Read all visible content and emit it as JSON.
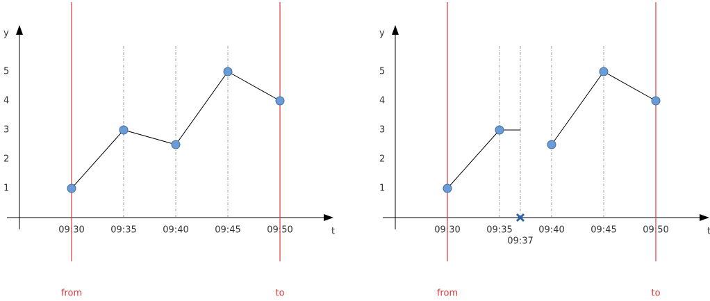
{
  "chart_data": [
    {
      "type": "line",
      "x_label": "t",
      "y_label": "y",
      "categories": [
        "09:30",
        "09:35",
        "09:40",
        "09:45",
        "09:50"
      ],
      "values": [
        1,
        3,
        2.5,
        5,
        4
      ],
      "color": "#6a9bd8",
      "line_color": "#000000",
      "ylim": [
        0,
        6.5
      ],
      "yticks": [
        1,
        2,
        3,
        4,
        5
      ],
      "range_labels": [
        "from",
        "to"
      ],
      "range_color": "#d9383a"
    },
    {
      "type": "line",
      "x_label": "t",
      "y_label": "y",
      "categories": [
        "09:30",
        "09:35",
        "09:37",
        "09:40",
        "09:45",
        "09:50"
      ],
      "values": [
        1,
        3,
        3,
        2.5,
        5,
        4
      ],
      "cross_at": 2,
      "color": "#6a9bd8",
      "line_color": "#000000",
      "ylim": [
        0,
        6.5
      ],
      "yticks": [
        1,
        2,
        3,
        4,
        5
      ],
      "range_labels": [
        "from",
        "to"
      ],
      "range_color": "#d9383a"
    }
  ]
}
